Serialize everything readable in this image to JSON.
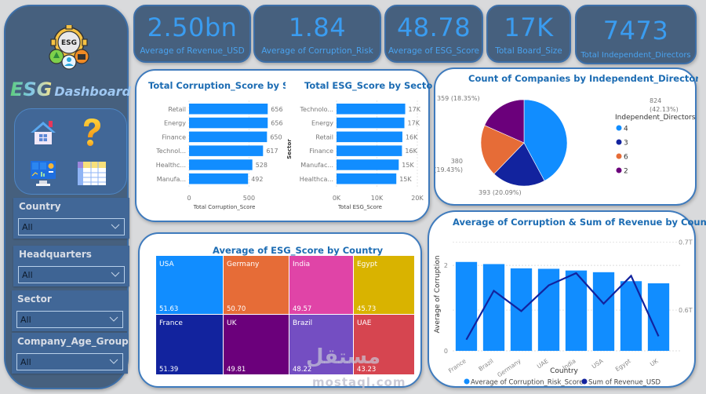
{
  "sidebar": {
    "brand_esg": "ESG",
    "brand_dashboard": "Dashboard",
    "logo_text": "ESG",
    "nav": [
      {
        "name": "home",
        "icon": "home-icon"
      },
      {
        "name": "help",
        "icon": "question-icon"
      },
      {
        "name": "dashboard",
        "icon": "monitor-charts-icon"
      },
      {
        "name": "table",
        "icon": "table-icon"
      }
    ],
    "slicers": [
      {
        "label": "Country",
        "value": "All"
      },
      {
        "label": "Headquarters",
        "value": "All"
      },
      {
        "label": "Sector",
        "value": "All"
      },
      {
        "label": "Company_Age_Group",
        "value": "All"
      }
    ]
  },
  "kpis": [
    {
      "value": "2.50bn",
      "label": "Average of Revenue_USD"
    },
    {
      "value": "1.84",
      "label": "Average of Corruption_Risk"
    },
    {
      "value": "48.78",
      "label": "Average of ESG_Score"
    },
    {
      "value": "17K",
      "label": "Total Board_Size"
    },
    {
      "value": "7473",
      "label": "Total Independent_Directors"
    }
  ],
  "watermark": {
    "arabic": "مستقل",
    "latin": "mostaql.com"
  },
  "colors": {
    "bar_blue": "#118dff",
    "navy": "#12239e",
    "orange": "#e66c37",
    "purple": "#6b007b",
    "title_blue": "#1c6cb3"
  },
  "chart_data": [
    {
      "id": "corruption_by_sector",
      "type": "bar",
      "orientation": "horizontal",
      "title": "Total Corruption_Score by Sector",
      "categories": [
        "Retail",
        "Energy",
        "Finance",
        "Technol...",
        "Healthc...",
        "Manufa..."
      ],
      "values": [
        656,
        656,
        650,
        617,
        528,
        492
      ],
      "data_labels": [
        "656",
        "656",
        "650",
        "617",
        "528",
        "492"
      ],
      "xlabel": "Total Corruption_Score",
      "ylabel": "Sector",
      "xlim": [
        0,
        700
      ],
      "xticks": [
        {
          "v": 0,
          "label": "0"
        },
        {
          "v": 500,
          "label": "500"
        }
      ]
    },
    {
      "id": "esg_by_sector",
      "type": "bar",
      "orientation": "horizontal",
      "title": "Total ESG_Score by Sector",
      "categories": [
        "Technolo...",
        "Energy",
        "Retail",
        "Finance",
        "Manufac...",
        "Healthca..."
      ],
      "values": [
        17000,
        16800,
        16300,
        16200,
        15400,
        14800
      ],
      "data_labels": [
        "17K",
        "17K",
        "16K",
        "16K",
        "15K",
        "15K"
      ],
      "xlabel": "Total ESG_Score",
      "ylabel": "Sector",
      "xlim": [
        0,
        20000
      ],
      "xticks": [
        {
          "v": 0,
          "label": "0K"
        },
        {
          "v": 10000,
          "label": "10K"
        },
        {
          "v": 20000,
          "label": "20K"
        }
      ]
    },
    {
      "id": "companies_by_independent_directors",
      "type": "pie",
      "title": "Count of Companies by Independent_Directors",
      "legend_title": "Independent_Directors",
      "legend_position": "right",
      "slices": [
        {
          "label": "4",
          "value": 824,
          "pct": "42.13%",
          "color": "#118dff"
        },
        {
          "label": "3",
          "value": 393,
          "pct": "20.09%",
          "color": "#12239e"
        },
        {
          "label": "6",
          "value": 380,
          "pct": "19.43%",
          "color": "#e66c37"
        },
        {
          "label": "2",
          "value": 359,
          "pct": "18.35%",
          "color": "#6b007b"
        }
      ]
    },
    {
      "id": "esg_by_country",
      "type": "treemap",
      "title": "Average of ESG_Score by Country",
      "items": [
        {
          "label": "USA",
          "value": 51.63,
          "display": "51.63",
          "color": "#118dff"
        },
        {
          "label": "Germany",
          "value": 50.7,
          "display": "50.70",
          "color": "#e66c37"
        },
        {
          "label": "India",
          "value": 49.57,
          "display": "49.57",
          "color": "#e044a7"
        },
        {
          "label": "Egypt",
          "value": 45.73,
          "display": "45.73",
          "color": "#d9b300"
        },
        {
          "label": "France",
          "value": 51.39,
          "display": "51.39",
          "color": "#12239e"
        },
        {
          "label": "UK",
          "value": 49.81,
          "display": "49.81",
          "color": "#6b007b"
        },
        {
          "label": "Brazil",
          "value": 48.22,
          "display": "48.22",
          "color": "#744ec2"
        },
        {
          "label": "UAE",
          "value": 43.23,
          "display": "43.23",
          "color": "#d64550"
        }
      ]
    },
    {
      "id": "corruption_revenue_by_country",
      "type": "bar",
      "combo": "bar+line",
      "title": "Average of Corruption & Sum of Revenue by Country",
      "categories": [
        "France",
        "Brazil",
        "Germany",
        "UAE",
        "India",
        "USA",
        "Egypt",
        "UK"
      ],
      "series": [
        {
          "name": "Average of Corruption_Risk_Score",
          "type": "bar",
          "axis": "left",
          "color": "#118dff",
          "values": [
            2.08,
            2.03,
            1.93,
            1.92,
            1.88,
            1.84,
            1.63,
            1.58
          ]
        },
        {
          "name": "Sum of Revenue_USD",
          "type": "line",
          "axis": "right",
          "color": "#12239e",
          "values": [
            0.5565,
            0.6285,
            0.5985,
            0.6365,
            0.6545,
            0.6095,
            0.6505,
            0.5615
          ]
        }
      ],
      "xlabel": "Country",
      "ylabel": "Average of Corruption",
      "ylim": [
        0,
        2.7
      ],
      "yticks": [
        {
          "v": 0,
          "label": "0"
        },
        {
          "v": 2,
          "label": "2"
        }
      ],
      "y2lim": [
        0.54,
        0.71
      ],
      "y2ticks": [
        {
          "v": 0.6,
          "label": "0.6T"
        },
        {
          "v": 0.7,
          "label": "0.7T"
        }
      ],
      "legend_position": "bottom",
      "grid": true
    }
  ]
}
